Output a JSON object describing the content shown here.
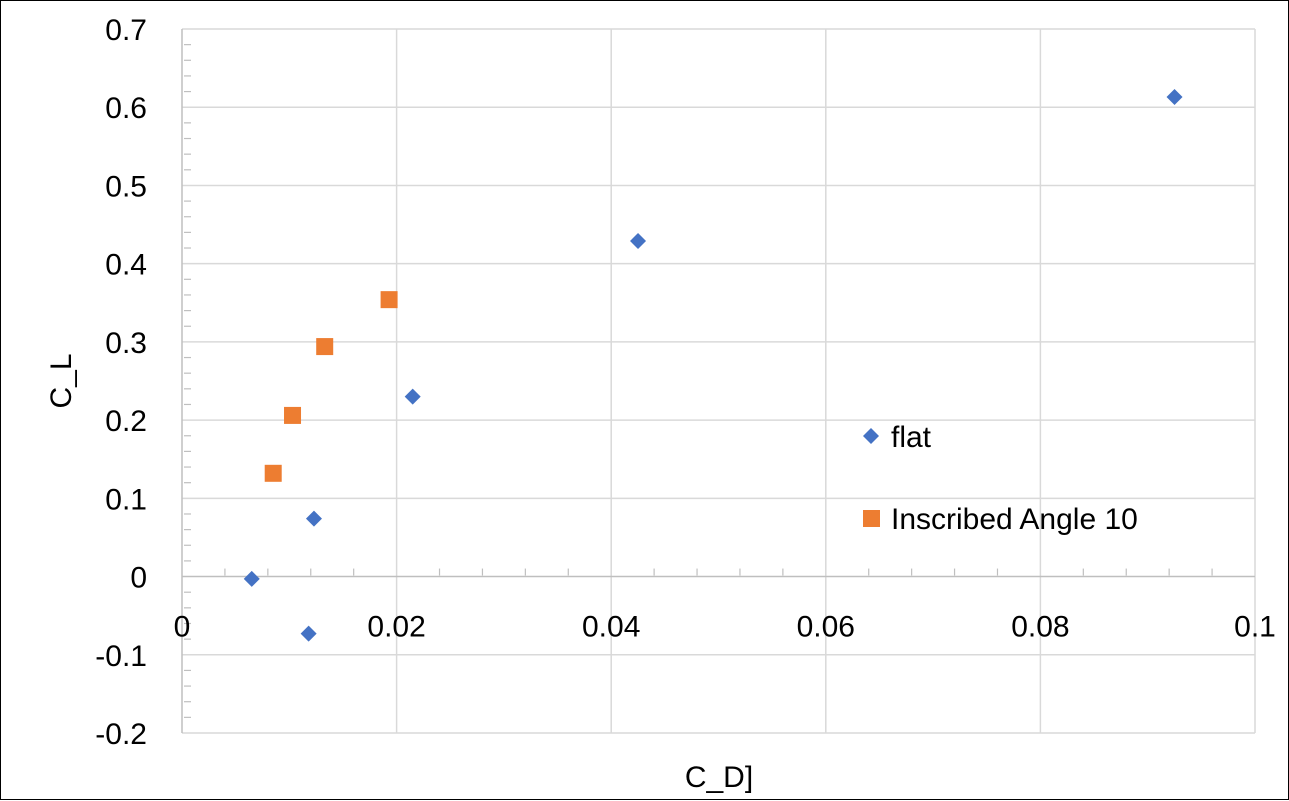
{
  "chart_data": {
    "type": "scatter",
    "title": "",
    "xlabel": "C_D]",
    "ylabel": "C_L",
    "xlim": [
      0,
      0.1
    ],
    "ylim": [
      -0.2,
      0.7
    ],
    "x_ticks": [
      0,
      0.02,
      0.04,
      0.06,
      0.08,
      0.1
    ],
    "x_tick_labels": [
      "0",
      "0.02",
      "0.04",
      "0.06",
      "0.08",
      "0.1"
    ],
    "y_ticks": [
      -0.2,
      -0.1,
      0,
      0.1,
      0.2,
      0.3,
      0.4,
      0.5,
      0.6,
      0.7
    ],
    "y_tick_labels": [
      "-0.2",
      "-0.1",
      "0",
      "0.1",
      "0.2",
      "0.3",
      "0.4",
      "0.5",
      "0.6",
      "0.7"
    ],
    "grid": true,
    "legend_position": "right",
    "series": [
      {
        "name": "flat",
        "marker": "diamond",
        "color": "#4472C4",
        "points": [
          {
            "x": 0.0065,
            "y": -0.003
          },
          {
            "x": 0.0118,
            "y": -0.073
          },
          {
            "x": 0.0123,
            "y": 0.074
          },
          {
            "x": 0.0215,
            "y": 0.23
          },
          {
            "x": 0.0425,
            "y": 0.429
          },
          {
            "x": 0.0925,
            "y": 0.613
          }
        ]
      },
      {
        "name": "Inscribed Angle 10",
        "marker": "square",
        "color": "#ED7D31",
        "points": [
          {
            "x": 0.0085,
            "y": 0.132
          },
          {
            "x": 0.0103,
            "y": 0.206
          },
          {
            "x": 0.0133,
            "y": 0.294
          },
          {
            "x": 0.0193,
            "y": 0.354
          }
        ]
      }
    ]
  }
}
